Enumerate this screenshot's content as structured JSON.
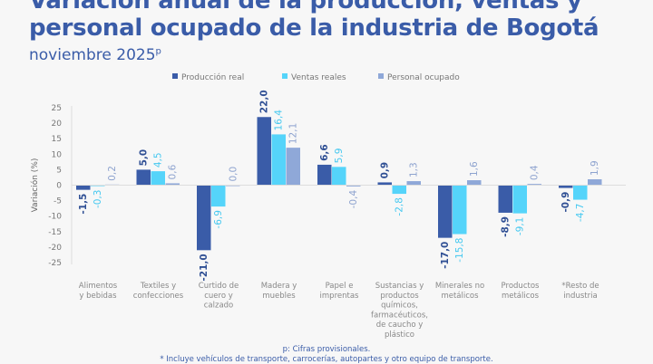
{
  "header": {
    "title_line1": "Variación anual de la producción, ventas y",
    "title_line2": "personal ocupado de la industria de Bogotá",
    "subtitle": "noviembre 2025",
    "subtitle_sup": "p"
  },
  "chart_data": {
    "type": "bar",
    "ylabel": "Variación (%)",
    "ylim": [
      -25,
      25
    ],
    "yticks": [
      25,
      20,
      15,
      10,
      5,
      0,
      -5,
      -10,
      -15,
      -20,
      -25
    ],
    "legend_position": "top",
    "categories": [
      [
        "Alimentos",
        "y bebidas"
      ],
      [
        "Textiles y",
        "confecciones"
      ],
      [
        "Curtido de",
        "cuero y",
        "calzado"
      ],
      [
        "Madera y",
        "muebles"
      ],
      [
        "Papel e",
        "imprentas"
      ],
      [
        "Sustancias y",
        "productos",
        "químicos,",
        "farmacéuticos,",
        "de caucho y",
        "plástico"
      ],
      [
        "Minerales no",
        "metálicos"
      ],
      [
        "Productos",
        "metálicos"
      ],
      [
        "*Resto de",
        "industria"
      ]
    ],
    "series": [
      {
        "name": "Producción real",
        "color": "#3a5ca8",
        "label_color": "#2f4f94",
        "values": [
          -1.5,
          5.0,
          -21.0,
          22.0,
          6.6,
          0.9,
          -17.0,
          -8.9,
          -0.9
        ]
      },
      {
        "name": "Ventas reales",
        "color": "#55d4fa",
        "label_color": "#45c8f0",
        "values": [
          -0.3,
          4.5,
          -6.9,
          16.4,
          5.9,
          -2.8,
          -15.8,
          -9.1,
          -4.7
        ]
      },
      {
        "name": "Personal ocupado",
        "color": "#8fa8d8",
        "label_color": "#8ea3cf",
        "values": [
          0.2,
          0.6,
          0.0,
          12.1,
          -0.4,
          1.3,
          1.6,
          0.4,
          1.9
        ]
      }
    ]
  },
  "footnotes": {
    "provisional": "p: Cifras provisionales.",
    "resto": "*  Incluye vehículos de transporte, carrocerías, autopartes y otro equipo de transporte."
  }
}
